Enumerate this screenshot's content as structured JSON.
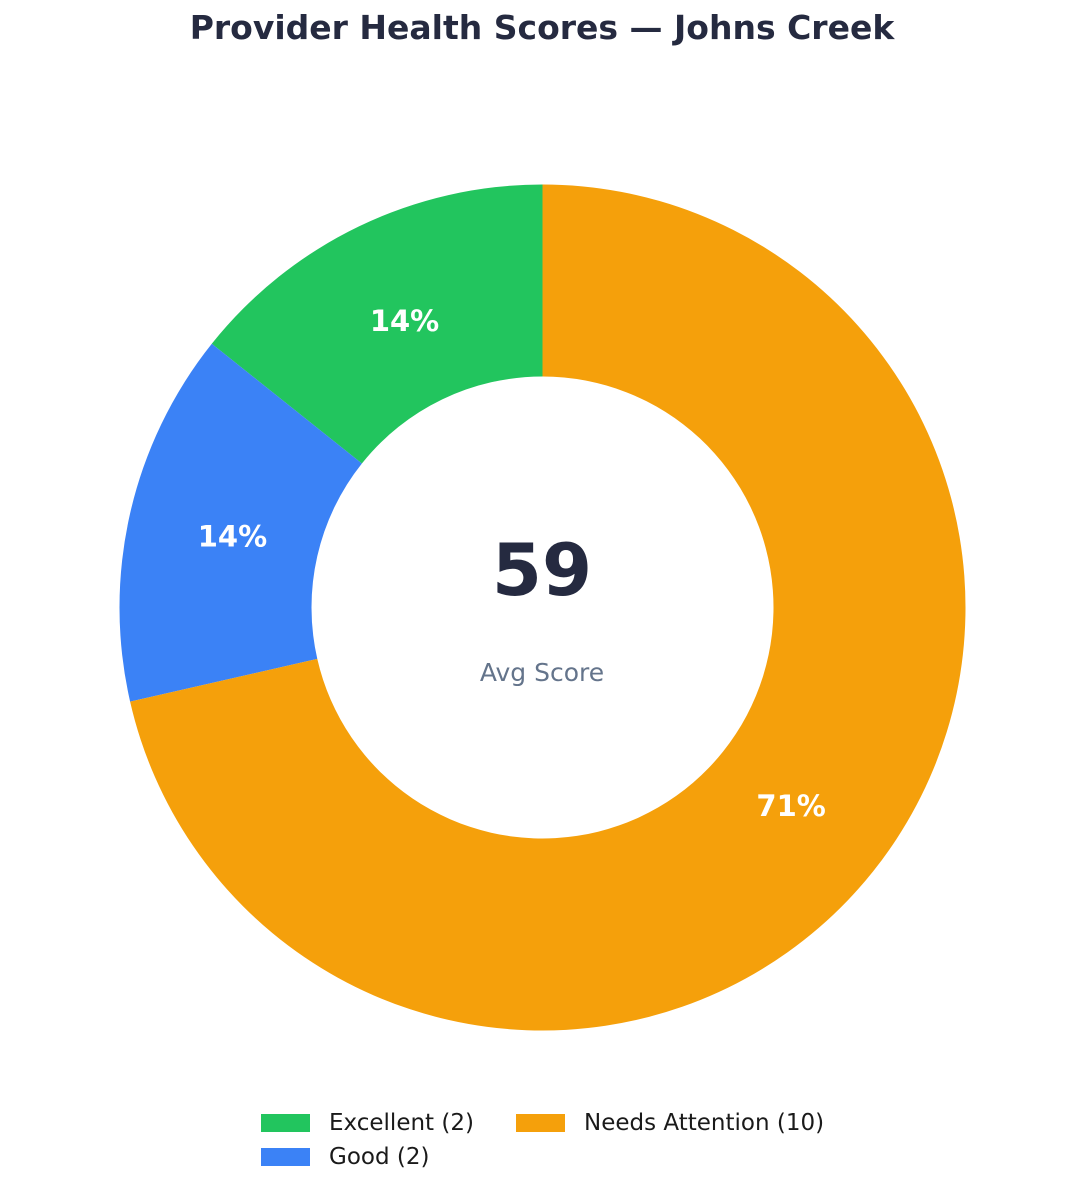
{
  "title": "Provider Health Scores — Johns Creek",
  "center": {
    "value": "59",
    "label": "Avg Score"
  },
  "chart_data": {
    "type": "pie",
    "subtype": "donut",
    "title": "Provider Health Scores — Johns Creek",
    "categories": [
      "Excellent",
      "Good",
      "Needs Attention"
    ],
    "counts": [
      2,
      2,
      10
    ],
    "percents": [
      14.3,
      14.3,
      71.4
    ],
    "percent_labels": [
      "14%",
      "14%",
      "71%"
    ],
    "colors": [
      "#22c55e",
      "#3b82f6",
      "#f5a00b"
    ],
    "hole_ratio": 0.546,
    "start_angle_deg": 0,
    "direction": "counterclockwise",
    "center_value": "59",
    "center_label": "Avg Score",
    "legend_position": "bottom",
    "legend_entries": [
      "Excellent (2)",
      "Good (2)",
      "Needs Attention (10)"
    ]
  },
  "legend": {
    "items": [
      {
        "label": "Excellent (2)",
        "color": "#22c55e"
      },
      {
        "label": "Good (2)",
        "color": "#3b82f6"
      },
      {
        "label": "Needs Attention (10)",
        "color": "#f5a00b"
      }
    ]
  },
  "theme": {
    "title_color": "#252a40",
    "center_value_color": "#252a40",
    "center_label_color": "#64748b",
    "legend_text_color": "#1a1a1a",
    "background": "#ffffff",
    "percent_label_color": "#ffffff"
  }
}
